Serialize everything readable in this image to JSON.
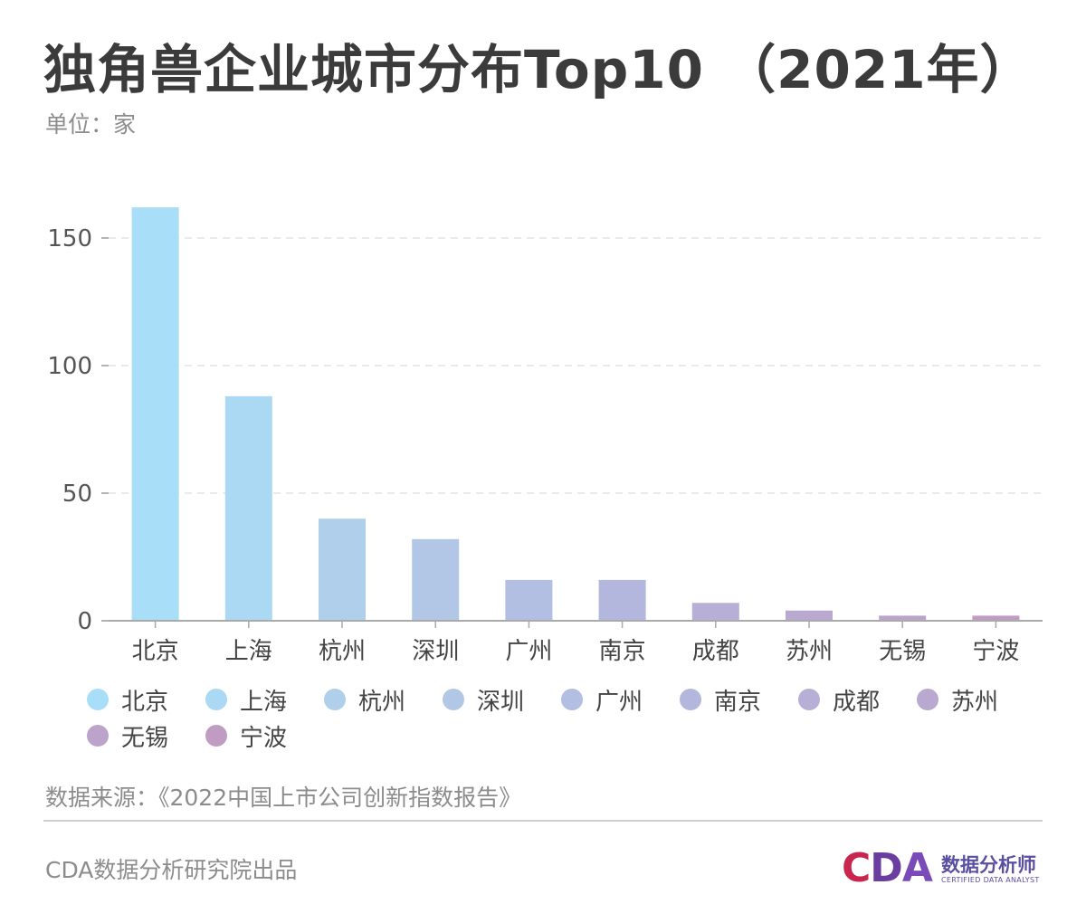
{
  "header": {
    "title": "独角兽企业城市分布Top10 （2021年）",
    "unit": "单位：家"
  },
  "chart_data": {
    "type": "bar",
    "categories": [
      "北京",
      "上海",
      "杭州",
      "深圳",
      "广州",
      "南京",
      "成都",
      "苏州",
      "无锡",
      "宁波"
    ],
    "values": [
      162,
      88,
      40,
      32,
      16,
      16,
      7,
      4,
      2,
      2
    ],
    "colors": [
      "#a8def7",
      "#abd8f2",
      "#b0cfea",
      "#b2c7e6",
      "#b2bfe2",
      "#b4b7dd",
      "#b7afd6",
      "#b9a8cf",
      "#bca3c9",
      "#c09cc3"
    ],
    "yticks": [
      0,
      50,
      100,
      150
    ],
    "ylim": [
      0,
      170
    ],
    "grid": true,
    "legend": "bottom"
  },
  "footer": {
    "source": "数据来源：《2022中国上市公司创新指数报告》",
    "credit": "CDA数据分析研究院出品"
  },
  "logo": {
    "letters": [
      "C",
      "D",
      "A"
    ],
    "letter_colors": [
      "#c8264f",
      "#6a3e9e",
      "#7a4bb8"
    ],
    "cn_text": "数据分析师",
    "en_text": "CERTIFIED DATA ANALYST"
  }
}
